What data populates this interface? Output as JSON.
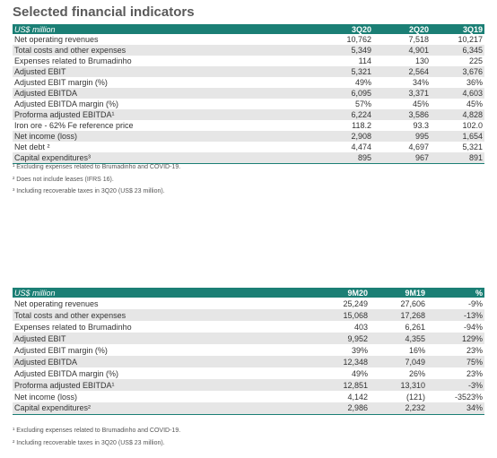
{
  "title": "Selected financial indicators",
  "table1": {
    "header": [
      "US$ million",
      "3Q20",
      "2Q20",
      "3Q19"
    ],
    "rows": [
      [
        "Net operating revenues",
        "10,762",
        "7,518",
        "10,217"
      ],
      [
        "Total costs and other expenses",
        "5,349",
        "4,901",
        "6,345"
      ],
      [
        "Expenses related to Brumadinho",
        "114",
        "130",
        "225"
      ],
      [
        "Adjusted EBIT",
        "5,321",
        "2,564",
        "3,676"
      ],
      [
        "Adjusted EBIT margin (%)",
        "49%",
        "34%",
        "36%"
      ],
      [
        "Adjusted EBITDA",
        "6,095",
        "3,371",
        "4,603"
      ],
      [
        "Adjusted EBITDA margin (%)",
        "57%",
        "45%",
        "45%"
      ],
      [
        "Proforma adjusted EBITDA¹",
        "6,224",
        "3,586",
        "4,828"
      ],
      [
        "Iron ore - 62% Fe reference price",
        "118.2",
        "93.3",
        "102.0"
      ],
      [
        "Net income (loss)",
        "2,908",
        "995",
        "1,654"
      ],
      [
        "Net debt ²",
        "4,474",
        "4,697",
        "5,321"
      ],
      [
        "Capital expenditures³",
        "895",
        "967",
        "891"
      ]
    ],
    "footnotes": [
      "¹ Excluding expenses related to Brumadinho and COVID-19.",
      "² Does not include leases (IFRS 16).",
      "³ Including recoverable taxes in 3Q20 (US$ 23 million)."
    ]
  },
  "table2": {
    "header": [
      "US$ million",
      "9M20",
      "9M19",
      "%"
    ],
    "rows": [
      [
        "Net operating revenues",
        "25,249",
        "27,606",
        "-9%"
      ],
      [
        "Total costs and other expenses",
        "15,068",
        "17,268",
        "-13%"
      ],
      [
        "Expenses related to Brumadinho",
        "403",
        "6,261",
        "-94%"
      ],
      [
        "Adjusted EBIT",
        "9,952",
        "4,355",
        "129%"
      ],
      [
        "Adjusted EBIT margin (%)",
        "39%",
        "16%",
        "23%"
      ],
      [
        "Adjusted EBITDA",
        "12,348",
        "7,049",
        "75%"
      ],
      [
        "Adjusted EBITDA margin (%)",
        "49%",
        "26%",
        "23%"
      ],
      [
        "Proforma adjusted EBITDA¹",
        "12,851",
        "13,310",
        "-3%"
      ],
      [
        "Net income (loss)",
        "4,142",
        "(121)",
        "-3523%"
      ],
      [
        "Capital expenditures²",
        "2,986",
        "2,232",
        "34%"
      ]
    ],
    "footnotes": [
      "¹ Excluding expenses related to Brumadinho and COVID-19.",
      "² Including recoverable taxes in 3Q20 (US$ 23 million)."
    ]
  }
}
